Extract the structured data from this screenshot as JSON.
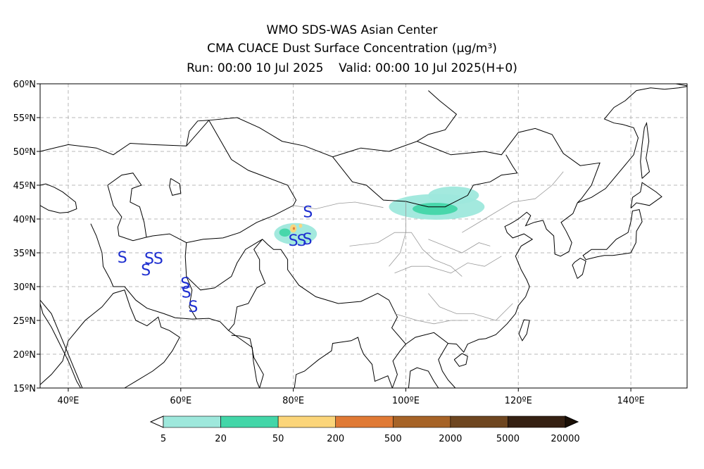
{
  "header": {
    "title": "WMO SDS-WAS Asian Center",
    "subtitle": "CMA CUACE Dust Surface Concentration (μg/m³)",
    "run_label": "Run: 00:00 10 Jul 2025",
    "valid_label": "Valid: 00:00 10 Jul 2025(H+0)"
  },
  "map": {
    "extent": {
      "lon": [
        35,
        150
      ],
      "lat": [
        15,
        60
      ]
    },
    "lat_ticks": [
      {
        "lat": 60,
        "label": "60ºN"
      },
      {
        "lat": 55,
        "label": "55ºN"
      },
      {
        "lat": 50,
        "label": "50ºN"
      },
      {
        "lat": 45,
        "label": "45ºN"
      },
      {
        "lat": 40,
        "label": "40ºN"
      },
      {
        "lat": 35,
        "label": "35ºN"
      },
      {
        "lat": 30,
        "label": "30ºN"
      },
      {
        "lat": 25,
        "label": "25ºN"
      },
      {
        "lat": 20,
        "label": "20ºN"
      },
      {
        "lat": 15,
        "label": "15ºN"
      }
    ],
    "lon_ticks": [
      {
        "lon": 40,
        "label": "40ºE"
      },
      {
        "lon": 60,
        "label": "60ºE"
      },
      {
        "lon": 80,
        "label": "80ºE"
      },
      {
        "lon": 100,
        "label": "100ºE"
      },
      {
        "lon": 120,
        "label": "120ºE"
      },
      {
        "lon": 140,
        "label": "140ºE"
      }
    ],
    "grid": true,
    "storm_symbol": "S",
    "storm_color": "#1e2fd0",
    "storm_markers": [
      {
        "lon": 49.6,
        "lat": 34.4
      },
      {
        "lon": 54.4,
        "lat": 34.2
      },
      {
        "lon": 56.0,
        "lat": 34.2
      },
      {
        "lon": 53.8,
        "lat": 32.5
      },
      {
        "lon": 60.8,
        "lat": 30.5
      },
      {
        "lon": 61.0,
        "lat": 29.2
      },
      {
        "lon": 62.2,
        "lat": 27.1
      },
      {
        "lon": 82.6,
        "lat": 41.1
      },
      {
        "lon": 80.0,
        "lat": 36.9
      },
      {
        "lon": 81.5,
        "lat": 36.9
      },
      {
        "lon": 82.5,
        "lat": 37.1
      }
    ],
    "dust_areas": [
      {
        "level": "5-20",
        "color": "#9ee8dc",
        "lon": 105.5,
        "lat": 41.8,
        "rlon": 8.5,
        "rlat": 1.9
      },
      {
        "level": "5-20",
        "color": "#9ee8dc",
        "lon": 108.5,
        "lat": 43.5,
        "rlon": 4.5,
        "rlat": 1.3
      },
      {
        "level": "20-50",
        "color": "#43d6a8",
        "lon": 105.2,
        "lat": 41.5,
        "rlon": 4.0,
        "rlat": 0.9
      },
      {
        "level": "5-20",
        "color": "#9ee8dc",
        "lon": 80.4,
        "lat": 37.8,
        "rlon": 3.8,
        "rlat": 1.6
      },
      {
        "level": "20-50",
        "color": "#43d6a8",
        "lon": 78.5,
        "lat": 38.0,
        "rlon": 1.0,
        "rlat": 0.6
      },
      {
        "level": "50-200",
        "color": "#fbd57a",
        "lon": 80.0,
        "lat": 38.6,
        "rlon": 0.6,
        "rlat": 0.6
      },
      {
        "level": "200-500",
        "color": "#e07a35",
        "lon": 80.1,
        "lat": 38.6,
        "rlon": 0.2,
        "rlat": 0.2
      },
      {
        "level": "50-200",
        "color": "#fbd57a",
        "lon": 81.3,
        "lat": 39.0,
        "rlon": 0.3,
        "rlat": 0.3
      }
    ]
  },
  "colorbar": {
    "levels": [
      "5",
      "20",
      "50",
      "200",
      "500",
      "2000",
      "5000",
      "20000"
    ],
    "colors": [
      "#9ee8dc",
      "#43d6a8",
      "#fbd57a",
      "#e07a35",
      "#a66327",
      "#6e4620",
      "#352012"
    ],
    "under_color": "#ffffff",
    "over_color": "#1a0f06"
  }
}
